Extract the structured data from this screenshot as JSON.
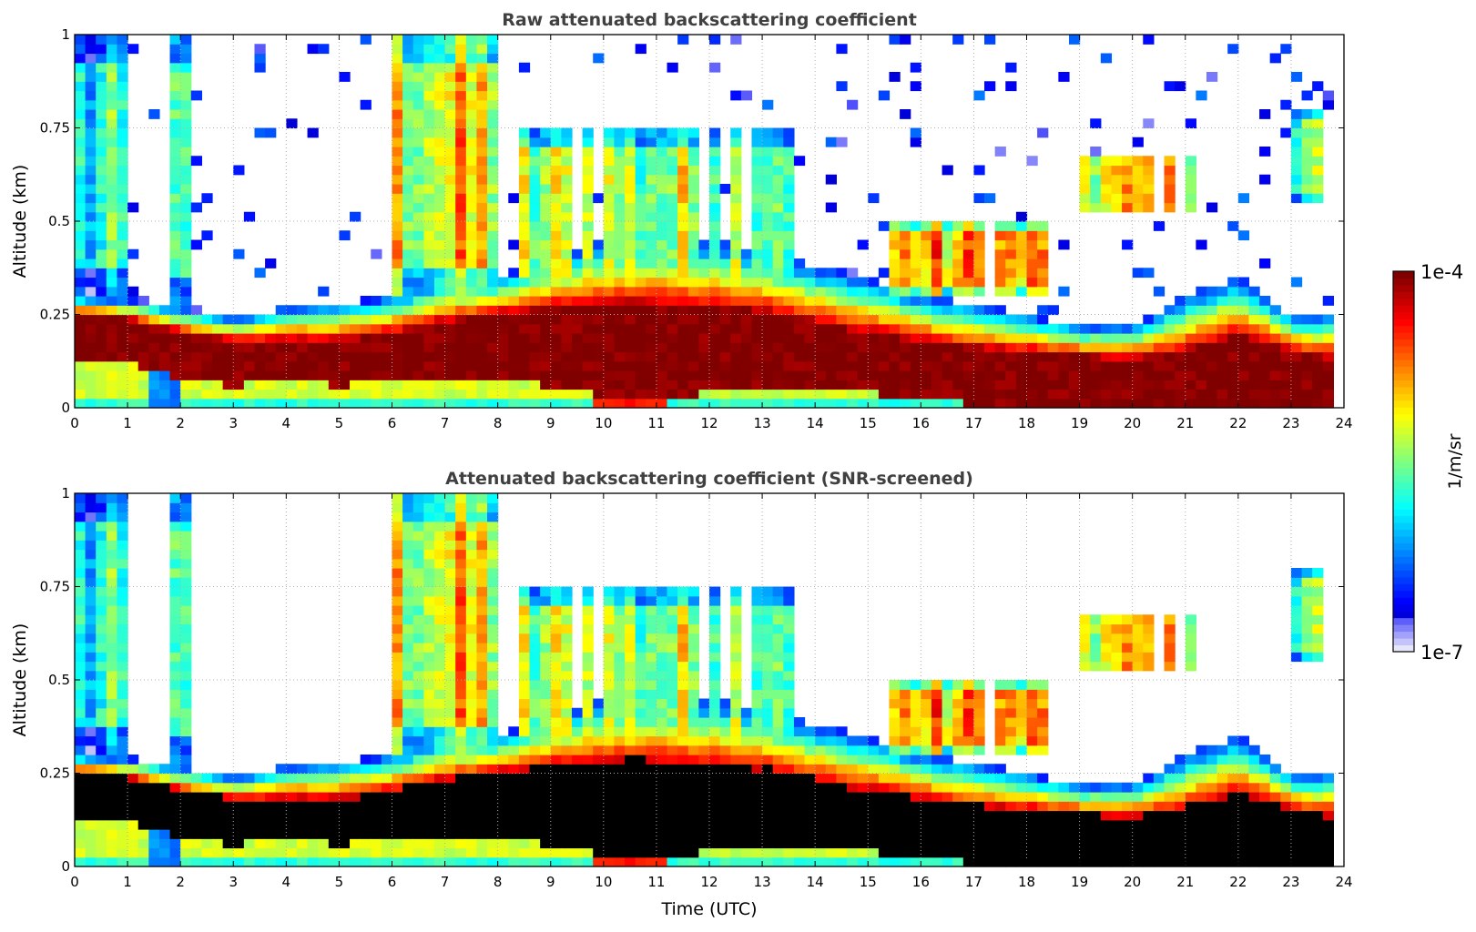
{
  "chart_data": [
    {
      "type": "heatmap",
      "title": "Raw attenuated backscattering coefficient",
      "xlabel": "",
      "ylabel": "Altitude (km)",
      "xlim": [
        0,
        24
      ],
      "ylim": [
        0,
        1
      ],
      "xticks": [
        "0",
        "1",
        "2",
        "3",
        "4",
        "5",
        "6",
        "7",
        "8",
        "9",
        "10",
        "11",
        "12",
        "13",
        "14",
        "15",
        "16",
        "17",
        "18",
        "19",
        "20",
        "21",
        "22",
        "23",
        "24"
      ],
      "yticks": [
        "0",
        "0.25",
        "0.5",
        "0.75",
        "1"
      ],
      "grid": true,
      "screened": false
    },
    {
      "type": "heatmap",
      "title": "Attenuated backscattering coefficient (SNR-screened)",
      "xlabel": "Time (UTC)",
      "ylabel": "Altitude (km)",
      "xlim": [
        0,
        24
      ],
      "ylim": [
        0,
        1
      ],
      "xticks": [
        "0",
        "1",
        "2",
        "3",
        "4",
        "5",
        "6",
        "7",
        "8",
        "9",
        "10",
        "11",
        "12",
        "13",
        "14",
        "15",
        "16",
        "17",
        "18",
        "19",
        "20",
        "21",
        "22",
        "23",
        "24"
      ],
      "yticks": [
        "0",
        "0.25",
        "0.5",
        "0.75",
        "1"
      ],
      "grid": true,
      "screened": true
    }
  ],
  "field": {
    "data_end_hour": 23.8,
    "hours": [
      0,
      1,
      2,
      3,
      4,
      5,
      6,
      7,
      8,
      9,
      10,
      11,
      12,
      13,
      14,
      15,
      16,
      17,
      18,
      19,
      20,
      21,
      22,
      23,
      24
    ],
    "aerosol_layer_top_km": [
      0.3,
      0.29,
      0.27,
      0.24,
      0.27,
      0.28,
      0.3,
      0.35,
      0.35,
      0.4,
      0.45,
      0.45,
      0.45,
      0.42,
      0.38,
      0.35,
      0.3,
      0.28,
      0.25,
      0.22,
      0.22,
      0.3,
      0.35,
      0.25,
      0.25
    ],
    "dense_core_top_km": [
      0.25,
      0.24,
      0.2,
      0.18,
      0.18,
      0.18,
      0.2,
      0.23,
      0.25,
      0.27,
      0.28,
      0.28,
      0.27,
      0.26,
      0.23,
      0.2,
      0.18,
      0.16,
      0.15,
      0.14,
      0.13,
      0.15,
      0.2,
      0.15,
      0.13
    ],
    "dense_core_bottom_km": [
      0.13,
      0.12,
      0.08,
      0.06,
      0.07,
      0.06,
      0.07,
      0.08,
      0.07,
      0.06,
      0.03,
      0.02,
      0.04,
      0.06,
      0.06,
      0.04,
      0.02,
      0.01,
      0.01,
      0.01,
      0.01,
      0.01,
      0.01,
      0.01,
      0.01
    ],
    "cloud_layers": [
      {
        "start_h": 0.0,
        "end_h": 0.9,
        "base_km": 0.3,
        "top_km": 1.0,
        "level": 0.35
      },
      {
        "start_h": 1.9,
        "end_h": 2.1,
        "base_km": 0.27,
        "top_km": 1.0,
        "level": 0.35
      },
      {
        "start_h": 6.1,
        "end_h": 7.9,
        "base_km": 0.3,
        "top_km": 1.0,
        "level": 0.62
      },
      {
        "start_h": 8.5,
        "end_h": 13.6,
        "base_km": 0.3,
        "top_km": 0.75,
        "level": 0.52
      },
      {
        "start_h": 15.5,
        "end_h": 18.3,
        "base_km": 0.3,
        "top_km": 0.5,
        "level": 0.68
      },
      {
        "start_h": 19.1,
        "end_h": 21.1,
        "base_km": 0.52,
        "top_km": 0.68,
        "level": 0.6
      },
      {
        "start_h": 23.0,
        "end_h": 23.6,
        "base_km": 0.55,
        "top_km": 0.8,
        "level": 0.45
      }
    ]
  },
  "colorbar": {
    "label": "1/m/sr",
    "max_label": "1e-4",
    "min_label": "1e-7",
    "range": [
      1e-07,
      0.0001
    ],
    "scale": "log",
    "colormap": "jet",
    "low_color": "#e6e6fa",
    "saturated_color_screened": "#000000"
  }
}
